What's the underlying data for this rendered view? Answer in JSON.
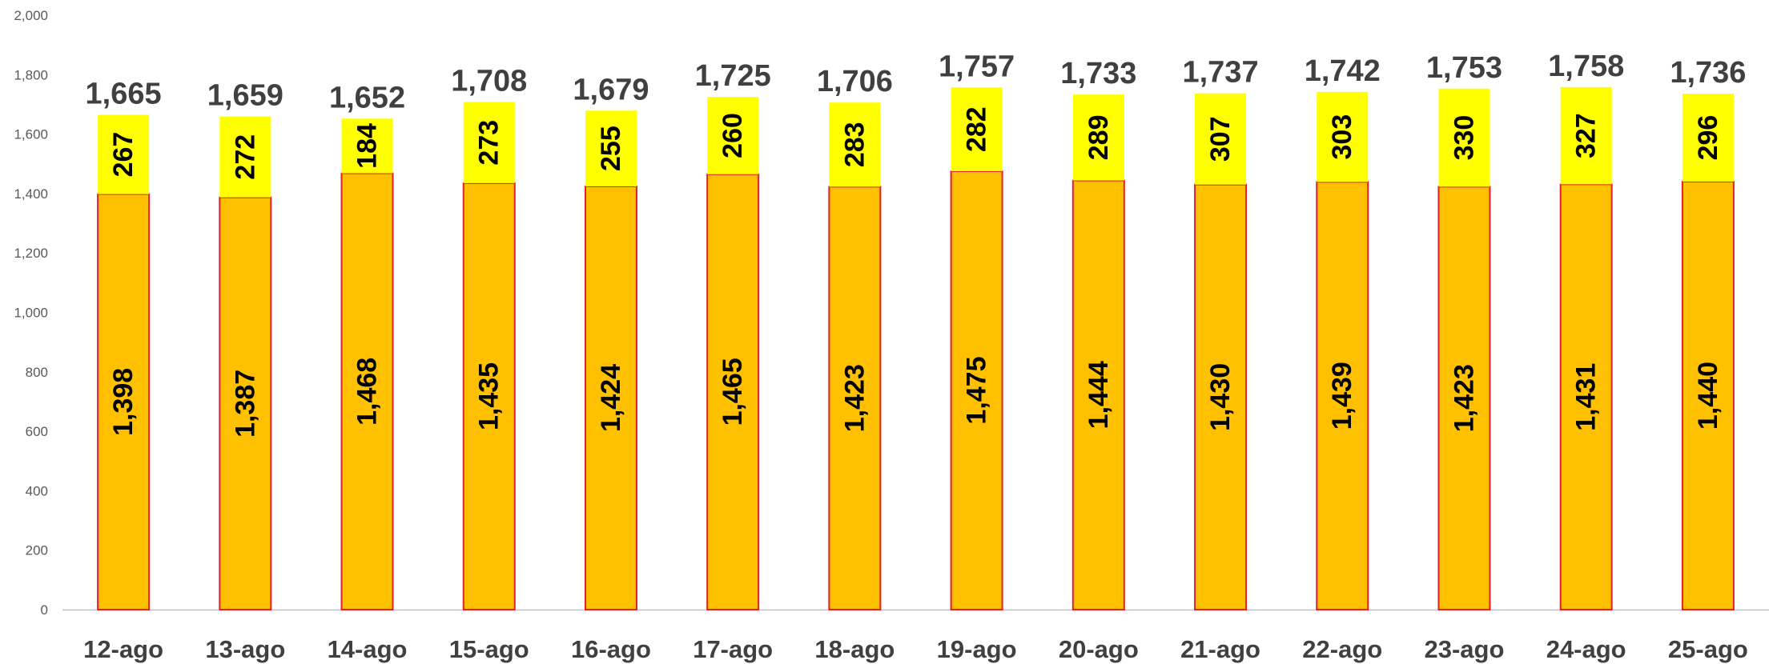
{
  "chart_data": {
    "type": "bar",
    "stacked": true,
    "title": "",
    "xlabel": "",
    "ylabel": "",
    "ylim": [
      0,
      2000
    ],
    "yticks": [
      "0",
      "200",
      "400",
      "600",
      "800",
      "1,000",
      "1,200",
      "1,400",
      "1,600",
      "1,800",
      "2,000"
    ],
    "grid": false,
    "legend": "none",
    "categories": [
      "12-ago",
      "13-ago",
      "14-ago",
      "15-ago",
      "16-ago",
      "17-ago",
      "18-ago",
      "19-ago",
      "20-ago",
      "21-ago",
      "22-ago",
      "23-ago",
      "24-ago",
      "25-ago"
    ],
    "series": [
      {
        "values": [
          1398,
          1387,
          1468,
          1435,
          1424,
          1465,
          1423,
          1475,
          1444,
          1430,
          1439,
          1423,
          1431,
          1440
        ],
        "labels": [
          "1,398",
          "1,387",
          "1,468",
          "1,435",
          "1,424",
          "1,465",
          "1,423",
          "1,475",
          "1,444",
          "1,430",
          "1,439",
          "1,423",
          "1,431",
          "1,440"
        ],
        "color": "#FFC000",
        "border": "#E0202A"
      },
      {
        "values": [
          267,
          272,
          184,
          273,
          255,
          260,
          283,
          282,
          289,
          307,
          303,
          330,
          327,
          296
        ],
        "labels": [
          "267",
          "272",
          "184",
          "273",
          "255",
          "260",
          "283",
          "282",
          "289",
          "307",
          "303",
          "330",
          "327",
          "296"
        ],
        "color": "#FFFF00"
      }
    ],
    "totals": [
      1665,
      1659,
      1652,
      1708,
      1679,
      1725,
      1706,
      1757,
      1733,
      1737,
      1742,
      1753,
      1758,
      1736
    ],
    "total_labels": [
      "1,665",
      "1,659",
      "1,652",
      "1,708",
      "1,679",
      "1,725",
      "1,706",
      "1,757",
      "1,733",
      "1,737",
      "1,742",
      "1,753",
      "1,758",
      "1,736"
    ]
  }
}
